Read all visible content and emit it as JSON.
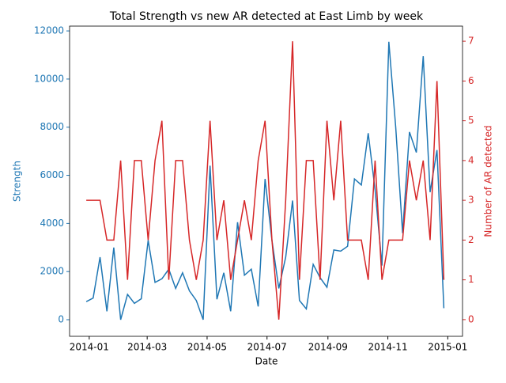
{
  "chart_data": {
    "type": "line",
    "title": "Total Strength vs new AR detected at East Limb by week",
    "xlabel": "Date",
    "ylabel": "Strength",
    "y2label": "Number of AR detected",
    "x": [
      "2013-12-29",
      "2014-01-05",
      "2014-01-12",
      "2014-01-19",
      "2014-01-26",
      "2014-02-02",
      "2014-02-09",
      "2014-02-16",
      "2014-02-23",
      "2014-03-02",
      "2014-03-09",
      "2014-03-16",
      "2014-03-23",
      "2014-03-30",
      "2014-04-06",
      "2014-04-13",
      "2014-04-20",
      "2014-04-27",
      "2014-05-04",
      "2014-05-11",
      "2014-05-18",
      "2014-05-25",
      "2014-06-01",
      "2014-06-08",
      "2014-06-15",
      "2014-06-22",
      "2014-06-29",
      "2014-07-06",
      "2014-07-13",
      "2014-07-20",
      "2014-07-27",
      "2014-08-03",
      "2014-08-10",
      "2014-08-17",
      "2014-08-24",
      "2014-08-31",
      "2014-09-07",
      "2014-09-14",
      "2014-09-21",
      "2014-09-28",
      "2014-10-05",
      "2014-10-12",
      "2014-10-19",
      "2014-10-26",
      "2014-11-02",
      "2014-11-09",
      "2014-11-16",
      "2014-11-23",
      "2014-11-30",
      "2014-12-07",
      "2014-12-14",
      "2014-12-21",
      "2014-12-28"
    ],
    "series": [
      {
        "name": "Strength",
        "color": "#1f77b4",
        "axis": "y",
        "values": [
          750,
          900,
          2600,
          350,
          3000,
          0,
          1050,
          680,
          870,
          3300,
          1550,
          1700,
          2100,
          1300,
          1950,
          1200,
          800,
          0,
          6400,
          850,
          1950,
          350,
          4050,
          1850,
          2100,
          550,
          5850,
          3300,
          1300,
          2600,
          4950,
          800,
          450,
          2300,
          1750,
          1350,
          2900,
          2850,
          3050,
          5850,
          5600,
          7750,
          5400,
          2250,
          11550,
          8000,
          3600,
          7800,
          6950,
          10950,
          5300,
          7050,
          480
        ]
      },
      {
        "name": "Number of AR detected",
        "color": "#d62728",
        "axis": "y2",
        "values": [
          3,
          3,
          3,
          2,
          2,
          4,
          1,
          4,
          4,
          2,
          4,
          5,
          1,
          4,
          4,
          2,
          1,
          2,
          5,
          2,
          3,
          1,
          2,
          3,
          2,
          4,
          5,
          2,
          0,
          3,
          7,
          1,
          4,
          4,
          1,
          5,
          3,
          5,
          2,
          2,
          2,
          1,
          4,
          1,
          2,
          2,
          2,
          4,
          3,
          4,
          2,
          6,
          1
        ]
      }
    ],
    "xlim": [
      "2013-12-12",
      "2015-01-16"
    ],
    "xticks": [
      {
        "value": "2014-01-01",
        "label": "2014-01"
      },
      {
        "value": "2014-03-01",
        "label": "2014-03"
      },
      {
        "value": "2014-05-01",
        "label": "2014-05"
      },
      {
        "value": "2014-07-01",
        "label": "2014-07"
      },
      {
        "value": "2014-09-01",
        "label": "2014-09"
      },
      {
        "value": "2014-11-01",
        "label": "2014-11"
      },
      {
        "value": "2015-01-01",
        "label": "2015-01"
      }
    ],
    "ylim": [
      -690,
      12200
    ],
    "yticks": [
      0,
      2000,
      4000,
      6000,
      8000,
      10000,
      12000
    ],
    "y2lim": [
      -0.42,
      7.38
    ],
    "y2ticks": [
      0,
      1,
      2,
      3,
      4,
      5,
      6,
      7
    ]
  }
}
